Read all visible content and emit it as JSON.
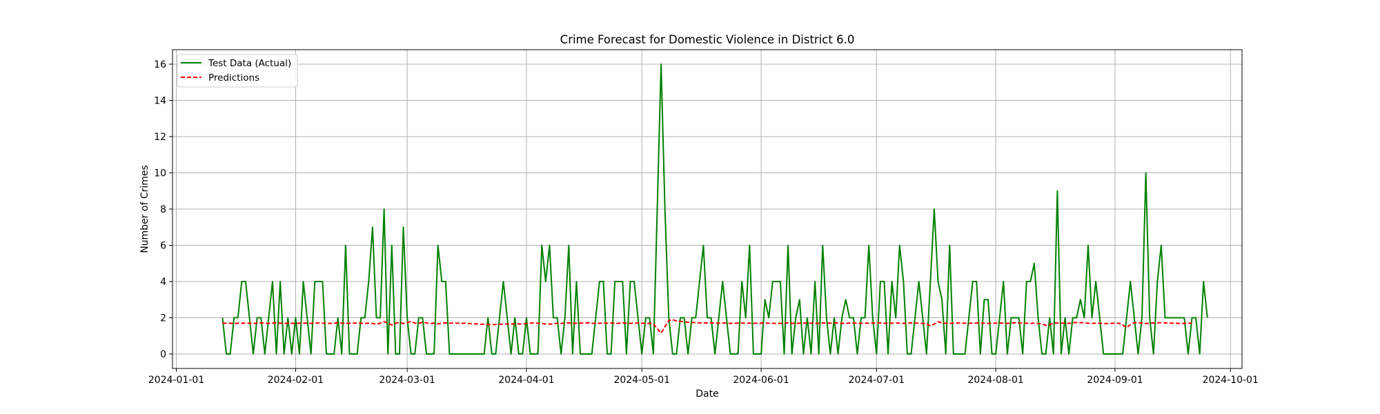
{
  "chart_data": {
    "type": "line",
    "title": "Crime Forecast for Domestic Violence in District 6.0",
    "xlabel": "Date",
    "ylabel": "Number of Crimes",
    "x_axis_type": "date",
    "xlim": [
      "2023-12-31",
      "2024-10-04"
    ],
    "ylim": [
      -0.8,
      16.8
    ],
    "xticks": [
      "2024-01-01",
      "2024-02-01",
      "2024-03-01",
      "2024-04-01",
      "2024-05-01",
      "2024-06-01",
      "2024-07-01",
      "2024-08-01",
      "2024-09-01",
      "2024-10-01"
    ],
    "yticks": [
      0,
      2,
      4,
      6,
      8,
      10,
      12,
      14,
      16
    ],
    "grid": true,
    "legend_position": "top-left",
    "x_start": "2024-01-13",
    "series": [
      {
        "name": "Test Data (Actual)",
        "color": "#008000",
        "style": "solid",
        "values": [
          2,
          0,
          0,
          2,
          2,
          4,
          4,
          2,
          0,
          2,
          2,
          0,
          2,
          4,
          0,
          4,
          0,
          2,
          0,
          2,
          0,
          4,
          2,
          0,
          4,
          4,
          4,
          0,
          0,
          0,
          2,
          0,
          6,
          0,
          0,
          0,
          2,
          2,
          4,
          7,
          2,
          2,
          8,
          0,
          6,
          0,
          0,
          7,
          2,
          0,
          0,
          2,
          2,
          0,
          0,
          0,
          6,
          4,
          4,
          0,
          0,
          0,
          0,
          0,
          0,
          0,
          0,
          0,
          0,
          2,
          0,
          0,
          2,
          4,
          2,
          0,
          2,
          0,
          0,
          2,
          0,
          0,
          0,
          6,
          4,
          6,
          2,
          2,
          0,
          2,
          6,
          0,
          4,
          0,
          0,
          0,
          0,
          2,
          4,
          4,
          0,
          0,
          4,
          4,
          4,
          0,
          4,
          4,
          2,
          0,
          2,
          2,
          0,
          8,
          16,
          8,
          2,
          0,
          0,
          2,
          2,
          0,
          2,
          2,
          4,
          6,
          2,
          2,
          0,
          2,
          4,
          2,
          0,
          0,
          0,
          4,
          2,
          6,
          0,
          0,
          0,
          3,
          2,
          4,
          4,
          4,
          0,
          6,
          0,
          2,
          3,
          0,
          2,
          0,
          4,
          0,
          6,
          2,
          0,
          2,
          0,
          2,
          3,
          2,
          2,
          0,
          2,
          2,
          6,
          2,
          0,
          4,
          4,
          0,
          4,
          2,
          6,
          4,
          0,
          0,
          2,
          4,
          2,
          0,
          4,
          8,
          4,
          3,
          0,
          6,
          0,
          0,
          0,
          0,
          2,
          4,
          4,
          0,
          3,
          3,
          0,
          0,
          2,
          4,
          0,
          2,
          2,
          2,
          0,
          4,
          4,
          5,
          2,
          0,
          0,
          2,
          0,
          9,
          0,
          2,
          0,
          2,
          2,
          3,
          2,
          6,
          2,
          4,
          2,
          0,
          0,
          0,
          0,
          0,
          0,
          2,
          4,
          2,
          0,
          2,
          10,
          2,
          0,
          4,
          6,
          2,
          2,
          2,
          2,
          2,
          2,
          0,
          2,
          2,
          0,
          4,
          2
        ]
      },
      {
        "name": "Predictions",
        "color": "#ff0000",
        "style": "dashed",
        "values": [
          1.7,
          1.7,
          1.7,
          1.68,
          1.7,
          1.69,
          1.71,
          1.7,
          1.69,
          1.7,
          1.72,
          1.7,
          1.69,
          1.7,
          1.71,
          1.7,
          1.69,
          1.7,
          1.7,
          1.68,
          1.7,
          1.71,
          1.7,
          1.69,
          1.7,
          1.71,
          1.7,
          1.7,
          1.69,
          1.7,
          1.72,
          1.7,
          1.69,
          1.7,
          1.7,
          1.71,
          1.7,
          1.69,
          1.7,
          1.68,
          1.65,
          1.7,
          1.78,
          1.7,
          1.6,
          1.7,
          1.74,
          1.68,
          1.72,
          1.8,
          1.7,
          1.69,
          1.75,
          1.72,
          1.68,
          1.7,
          1.66,
          1.7,
          1.72,
          1.7,
          1.71,
          1.7,
          1.69,
          1.7,
          1.68,
          1.67,
          1.66,
          1.65,
          1.64,
          1.63,
          1.62,
          1.63,
          1.65,
          1.64,
          1.66,
          1.65,
          1.67,
          1.66,
          1.65,
          1.68,
          1.7,
          1.72,
          1.7,
          1.68,
          1.66,
          1.65,
          1.66,
          1.7,
          1.69,
          1.7,
          1.72,
          1.7,
          1.69,
          1.7,
          1.71,
          1.72,
          1.7,
          1.69,
          1.7,
          1.7,
          1.7,
          1.71,
          1.7,
          1.69,
          1.72,
          1.7,
          1.69,
          1.7,
          1.71,
          1.7,
          1.69,
          1.7,
          1.66,
          1.4,
          1.15,
          1.5,
          1.85,
          1.9,
          1.82,
          1.8,
          1.78,
          1.75,
          1.74,
          1.73,
          1.72,
          1.72,
          1.71,
          1.72,
          1.7,
          1.7,
          1.71,
          1.7,
          1.69,
          1.7,
          1.7,
          1.71,
          1.7,
          1.7,
          1.69,
          1.7,
          1.71,
          1.7,
          1.7,
          1.7,
          1.68,
          1.69,
          1.7,
          1.72,
          1.7,
          1.69,
          1.7,
          1.7,
          1.71,
          1.7,
          1.69,
          1.7,
          1.71,
          1.7,
          1.7,
          1.72,
          1.7,
          1.69,
          1.7,
          1.7,
          1.71,
          1.7,
          1.69,
          1.7,
          1.7,
          1.71,
          1.7,
          1.72,
          1.69,
          1.7,
          1.7,
          1.71,
          1.7,
          1.69,
          1.7,
          1.72,
          1.7,
          1.7,
          1.69,
          1.68,
          1.55,
          1.65,
          1.78,
          1.72,
          1.7,
          1.69,
          1.7,
          1.71,
          1.7,
          1.7,
          1.69,
          1.7,
          1.71,
          1.7,
          1.7,
          1.69,
          1.7,
          1.7,
          1.71,
          1.7,
          1.69,
          1.7,
          1.72,
          1.71,
          1.7,
          1.7,
          1.69,
          1.7,
          1.68,
          1.66,
          1.58,
          1.62,
          1.7,
          1.71,
          1.7,
          1.7,
          1.69,
          1.72,
          1.74,
          1.73,
          1.72,
          1.7,
          1.69,
          1.7,
          1.7,
          1.68,
          1.68,
          1.69,
          1.7,
          1.7,
          1.6,
          1.45,
          1.62,
          1.72,
          1.74,
          1.7,
          1.68,
          1.7,
          1.71,
          1.72,
          1.73,
          1.72,
          1.7,
          1.7,
          1.7,
          1.68,
          1.69,
          1.7,
          1.7
        ]
      }
    ]
  }
}
